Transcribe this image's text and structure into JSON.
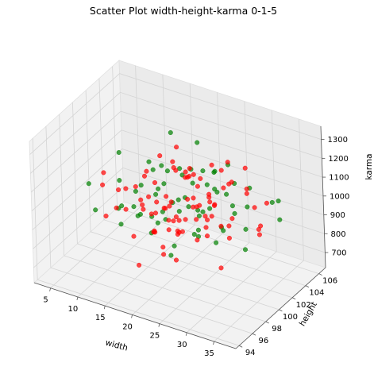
{
  "chart_data": {
    "type": "scatter",
    "projection": "3d",
    "title": "Scatter Plot  width-height-karma  0-1-5",
    "xlabel": "width",
    "ylabel": "height",
    "zlabel": "karma",
    "xlim": [
      2,
      39
    ],
    "ylim": [
      93.5,
      107
    ],
    "zlim": [
      620,
      1370
    ],
    "xticks": [
      5,
      10,
      15,
      20,
      25,
      30,
      35
    ],
    "yticks": [
      94,
      96,
      98,
      100,
      102,
      104,
      106
    ],
    "zticks": [
      700,
      800,
      900,
      1000,
      1100,
      1200,
      1300
    ],
    "grid": true,
    "legend": "none",
    "series": [
      {
        "color": "#ff0000",
        "marker_alpha": 0.7,
        "points": [
          [
            20.1,
            99.4,
            1010
          ],
          [
            18.3,
            100.2,
            955
          ],
          [
            22.4,
            101.1,
            1020
          ],
          [
            24.6,
            99.7,
            972
          ],
          [
            16.9,
            98.9,
            1045
          ],
          [
            21.2,
            100.8,
            905
          ],
          [
            25.3,
            101.9,
            988
          ],
          [
            19.5,
            102.3,
            1064
          ],
          [
            23.1,
            98.1,
            930
          ],
          [
            17.6,
            100.9,
            990
          ],
          [
            26.2,
            100.4,
            1082
          ],
          [
            14.8,
            99.6,
            960
          ],
          [
            21.9,
            97.8,
            1003
          ],
          [
            24.1,
            102.8,
            942
          ],
          [
            18.8,
            101.5,
            1120
          ],
          [
            27.4,
            99.1,
            1015
          ],
          [
            15.9,
            101.9,
            880
          ],
          [
            22.7,
            100.1,
            1165
          ],
          [
            20.6,
            103.2,
            998
          ],
          [
            23.8,
            97.4,
            1051
          ],
          [
            12.4,
            100.6,
            1002
          ],
          [
            29.1,
            101.4,
            965
          ],
          [
            19.9,
            98.4,
            822
          ],
          [
            25.9,
            103.6,
            1048
          ],
          [
            17.1,
            97.9,
            1012
          ],
          [
            28.3,
            100.9,
            1136
          ],
          [
            13.7,
            102.4,
            978
          ],
          [
            21.5,
            104.1,
            936
          ],
          [
            24.9,
            96.9,
            995
          ],
          [
            16.4,
            103.1,
            1061
          ],
          [
            30.5,
            99.8,
            925
          ],
          [
            11.6,
            98.7,
            1038
          ],
          [
            22.1,
            101.7,
            775
          ],
          [
            26.8,
            98.5,
            1105
          ],
          [
            18.4,
            104.4,
            1002
          ],
          [
            20.8,
            96.6,
            967
          ],
          [
            31.8,
            102.6,
            1011
          ],
          [
            9.8,
            101.2,
            948
          ],
          [
            23.4,
            99.3,
            1225
          ],
          [
            15.3,
            96.8,
            1030
          ],
          [
            27.9,
            104.6,
            984
          ],
          [
            19.2,
            99.9,
            860
          ],
          [
            25.6,
            100.3,
            920
          ],
          [
            14.2,
            104.7,
            1021
          ],
          [
            32.4,
            98.3,
            1056
          ],
          [
            21.7,
            95.8,
            1008
          ],
          [
            17.9,
            102.9,
            742
          ],
          [
            24.4,
            105.2,
            993
          ],
          [
            29.7,
            97.2,
            1012
          ],
          [
            8.2,
            99.3,
            1078
          ],
          [
            34.1,
            101.3,
            958
          ],
          [
            20.3,
            105.6,
            1032
          ],
          [
            22.9,
            96.1,
            885
          ],
          [
            12.9,
            97.3,
            999
          ],
          [
            26.5,
            102.1,
            1174
          ],
          [
            16.1,
            100.1,
            812
          ],
          [
            28.8,
            103.9,
            1040
          ],
          [
            10.7,
            103.6,
            972
          ],
          [
            35.2,
            100.7,
            1006
          ],
          [
            19.7,
            101.0,
            1268
          ],
          [
            23.6,
            100.6,
            1001
          ],
          [
            18.1,
            99.1,
            1022
          ],
          [
            21.0,
            99.2,
            946
          ],
          [
            25.1,
            98.9,
            1068
          ],
          [
            17.4,
            101.8,
            930
          ],
          [
            27.1,
            100.0,
            1003
          ],
          [
            14.5,
            100.3,
            1087
          ],
          [
            22.6,
            102.6,
            878
          ],
          [
            20.4,
            97.1,
            1049
          ],
          [
            24.2,
            100.8,
            1150
          ],
          [
            6.4,
            100.5,
            958
          ],
          [
            36.5,
            99.5,
            1010
          ],
          [
            30.9,
            105.1,
            946
          ],
          [
            13.2,
            95.5,
            1016
          ],
          [
            33.1,
            96.4,
            900
          ],
          [
            11.1,
            105.3,
            1004
          ],
          [
            19.0,
            94.9,
            982
          ],
          [
            26.1,
            105.9,
            1061
          ],
          [
            15.6,
            98.2,
            692
          ],
          [
            28.1,
            101.8,
            1242
          ],
          [
            21.4,
            101.4,
            1117
          ],
          [
            23.3,
            97.6,
            811
          ],
          [
            18.6,
            103.7,
            1059
          ],
          [
            25.4,
            96.3,
            1027
          ],
          [
            16.7,
            99.4,
            936
          ],
          [
            22.2,
            100.4,
            1034
          ],
          [
            20.9,
            100.1,
            919
          ],
          [
            24.8,
            101.6,
            1006
          ],
          [
            17.2,
            97.5,
            1076
          ],
          [
            29.4,
            99.5,
            988
          ]
        ]
      },
      {
        "color": "#008000",
        "marker_alpha": 0.7,
        "points": [
          [
            21.5,
            100.6,
            1030
          ],
          [
            19.3,
            99.0,
            985
          ],
          [
            23.7,
            101.4,
            950
          ],
          [
            17.8,
            100.5,
            1072
          ],
          [
            25.8,
            99.2,
            1018
          ],
          [
            20.2,
            102.1,
            922
          ],
          [
            22.8,
            98.6,
            1094
          ],
          [
            18.9,
            97.7,
            997
          ],
          [
            26.9,
            102.4,
            1041
          ],
          [
            15.2,
            101.3,
            965
          ],
          [
            24.3,
            103.1,
            1006
          ],
          [
            16.6,
            98.1,
            1129
          ],
          [
            21.1,
            104.2,
            980
          ],
          [
            28.6,
            100.2,
            952
          ],
          [
            13.4,
            99.8,
            1012
          ],
          [
            23.1,
            96.4,
            1063
          ],
          [
            19.6,
            103.9,
            840
          ],
          [
            27.6,
            97.6,
            1011
          ],
          [
            12.1,
            102.9,
            1058
          ],
          [
            30.2,
            102.8,
            993
          ],
          [
            22.4,
            99.6,
            1190
          ],
          [
            17.3,
            104.9,
            1004
          ],
          [
            25.2,
            95.9,
            958
          ],
          [
            14.4,
            96.9,
            1037
          ],
          [
            31.5,
            99.9,
            1062
          ],
          [
            20.7,
            98.9,
            770
          ],
          [
            9.3,
            100.7,
            1003
          ],
          [
            33.7,
            103.7,
            1021
          ],
          [
            18.1,
            106.0,
            968
          ],
          [
            24.7,
            104.5,
            1110
          ],
          [
            11.9,
            98.4,
            952
          ],
          [
            29.6,
            96.0,
            1046
          ],
          [
            21.8,
            95.3,
            1014
          ],
          [
            7.6,
            102.1,
            1090
          ],
          [
            35.8,
            97.9,
            975
          ],
          [
            26.3,
            98.0,
            1235
          ],
          [
            16.0,
            102.5,
            1059
          ],
          [
            19.9,
            101.2,
            1150
          ],
          [
            23.9,
            99.9,
            880
          ],
          [
            28.2,
            104.8,
            1010
          ],
          [
            10.4,
            96.2,
            1000
          ],
          [
            32.7,
            105.4,
            965
          ],
          [
            14.9,
            104.0,
            1204
          ],
          [
            25.5,
            101.0,
            997
          ],
          [
            18.5,
            96.0,
            1051
          ],
          [
            22.3,
            102.0,
            1285
          ],
          [
            30.8,
            98.7,
            1003
          ],
          [
            12.7,
            100.0,
            918
          ],
          [
            36.9,
            102.2,
            1007
          ],
          [
            20.5,
            97.3,
            991
          ],
          [
            27.3,
            103.3,
            1074
          ],
          [
            15.7,
            95.7,
            990
          ],
          [
            24.0,
            96.8,
            1148
          ],
          [
            5.9,
            98.9,
            1011
          ],
          [
            34.6,
            99.0,
            1036
          ],
          [
            21.3,
            105.1,
            1019
          ],
          [
            17.0,
            99.6,
            1167
          ],
          [
            26.6,
            100.9,
            829
          ],
          [
            19.1,
            95.9,
            1068
          ],
          [
            23.5,
            103.5,
            1096
          ],
          [
            13.9,
            103.3,
            1042
          ],
          [
            29.0,
            101.6,
            1025
          ],
          [
            22.0,
            99.3,
            1003
          ],
          [
            16.3,
            100.8,
            1021
          ],
          [
            25.0,
            102.2,
            1057
          ]
        ]
      }
    ]
  }
}
